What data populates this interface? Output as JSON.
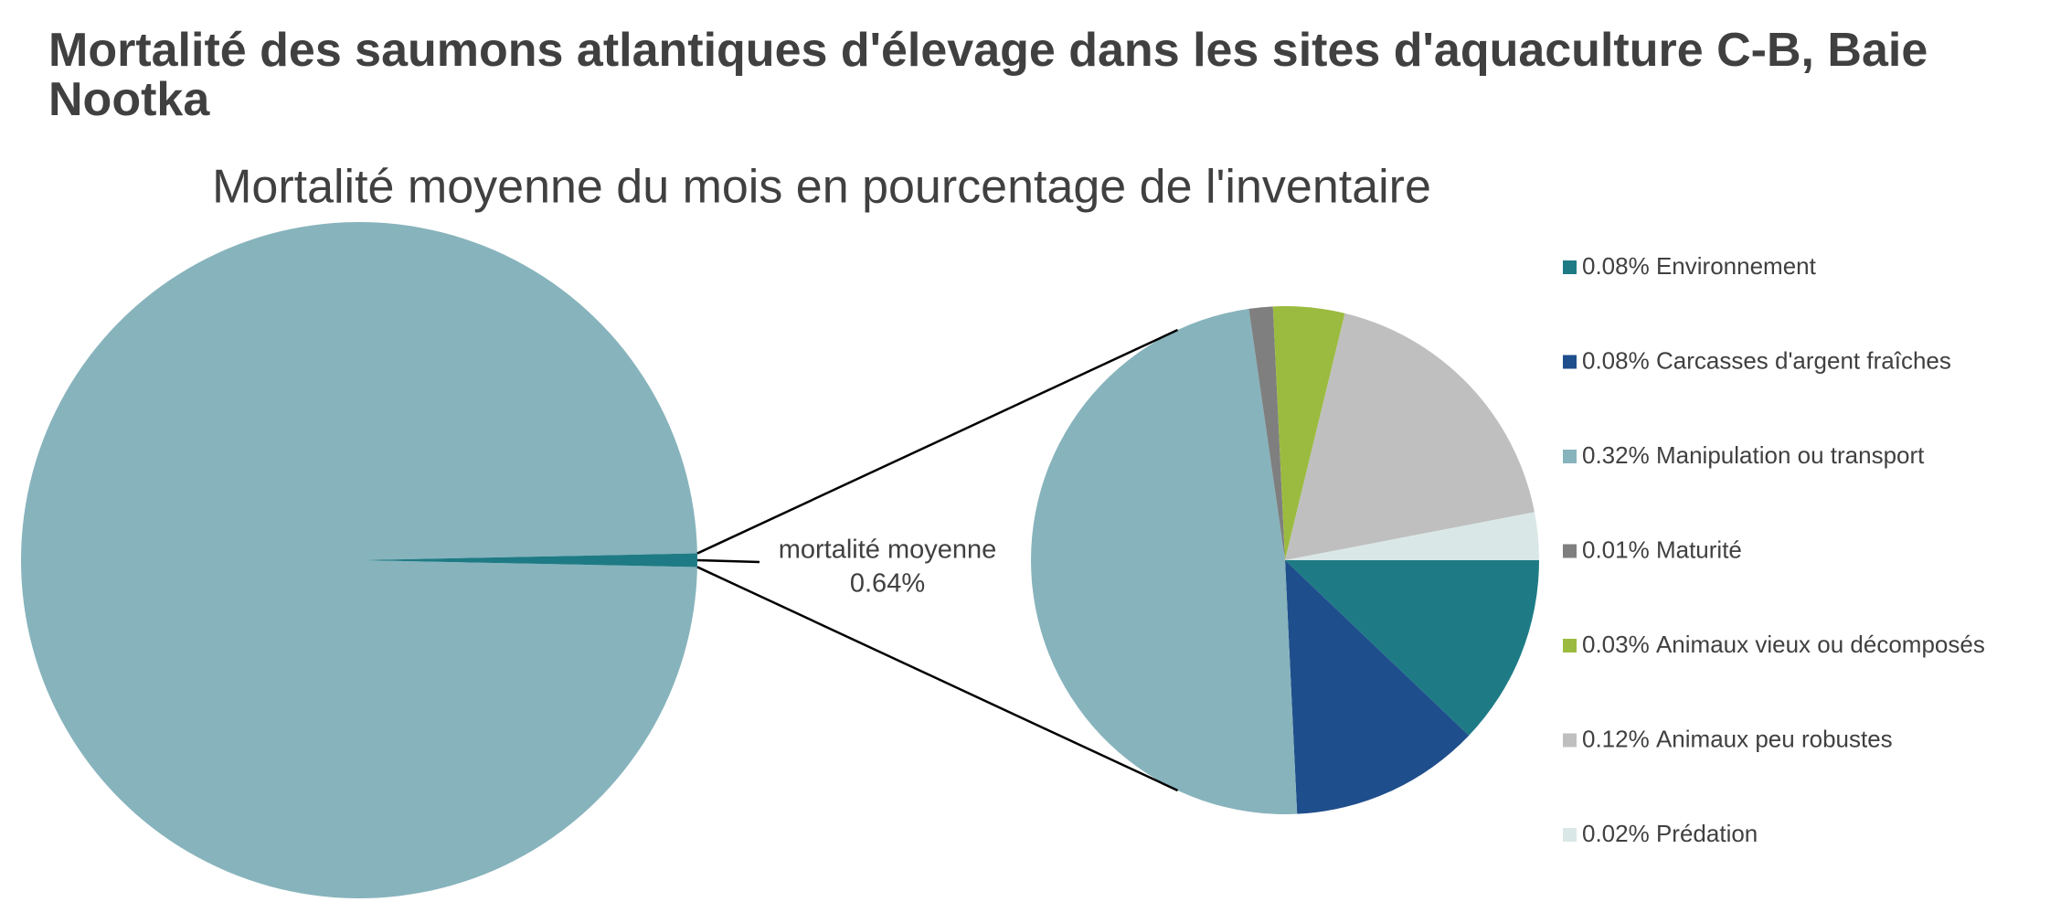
{
  "chart_data": [
    {
      "type": "pie",
      "title": "Mortalité des saumons atlantiques d'élevage dans les sites d'aquaculture C-B, Baie Nootka",
      "subtitle": "Mortalité moyenne du mois en pourcentage de l'inventaire",
      "categories": [
        null,
        "mortalité moyenne"
      ],
      "values": [
        99.36,
        0.64
      ],
      "value_labels": [
        null,
        "0.64%"
      ],
      "colors": [
        "#87b3bc",
        "#1e7b85"
      ]
    },
    {
      "type": "pie",
      "categories": [
        "Environnement",
        "Carcasses d'argent fraîches",
        "Manipulation ou transport",
        "Maturité",
        "Animaux vieux ou décomposés",
        "Animaux peu robustes",
        "Prédation"
      ],
      "values": [
        0.08,
        0.08,
        0.32,
        0.01,
        0.03,
        0.12,
        0.02
      ],
      "value_labels": [
        "0.08%",
        "0.08%",
        "0.32%",
        "0.01%",
        "0.03%",
        "0.12%",
        "0.02%"
      ],
      "colors": [
        "#1e7b85",
        "#1f4e8c",
        "#87b3bc",
        "#7f7f7f",
        "#9bbb40",
        "#bfbfbf",
        "#d9e8e6"
      ],
      "legend": "right"
    }
  ]
}
